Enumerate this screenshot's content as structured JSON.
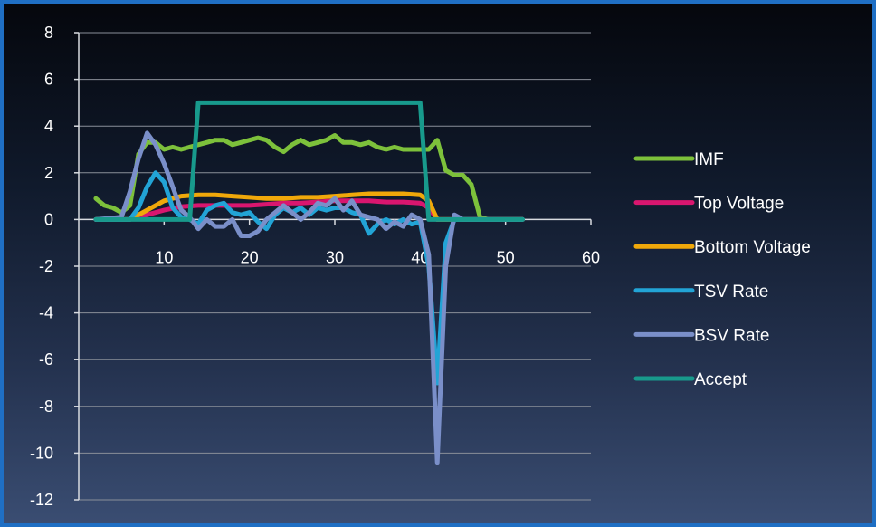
{
  "chart_data": {
    "type": "line",
    "title": "",
    "xlabel": "",
    "ylabel": "",
    "xlim": [
      0,
      60
    ],
    "ylim": [
      -12,
      8
    ],
    "x_ticks": [
      10,
      20,
      30,
      40,
      50,
      60
    ],
    "y_ticks": [
      8,
      6,
      4,
      2,
      0,
      -2,
      -4,
      -6,
      -8,
      -10,
      -12
    ],
    "grid": "horizontal",
    "legend_position": "right",
    "series": [
      {
        "name": "IMF",
        "color": "#7dc13b",
        "points": [
          [
            2,
            0.9
          ],
          [
            3,
            0.6
          ],
          [
            4,
            0.5
          ],
          [
            5,
            0.3
          ],
          [
            6,
            0.6
          ],
          [
            7,
            2.8
          ],
          [
            8,
            3.3
          ],
          [
            9,
            3.3
          ],
          [
            10,
            3.0
          ],
          [
            11,
            3.1
          ],
          [
            12,
            3.0
          ],
          [
            13,
            3.1
          ],
          [
            14,
            3.2
          ],
          [
            15,
            3.3
          ],
          [
            16,
            3.4
          ],
          [
            17,
            3.4
          ],
          [
            18,
            3.2
          ],
          [
            19,
            3.3
          ],
          [
            20,
            3.4
          ],
          [
            21,
            3.5
          ],
          [
            22,
            3.4
          ],
          [
            23,
            3.1
          ],
          [
            24,
            2.9
          ],
          [
            25,
            3.2
          ],
          [
            26,
            3.4
          ],
          [
            27,
            3.2
          ],
          [
            28,
            3.3
          ],
          [
            29,
            3.4
          ],
          [
            30,
            3.6
          ],
          [
            31,
            3.3
          ],
          [
            32,
            3.3
          ],
          [
            33,
            3.2
          ],
          [
            34,
            3.3
          ],
          [
            35,
            3.1
          ],
          [
            36,
            3.0
          ],
          [
            37,
            3.1
          ],
          [
            38,
            3.0
          ],
          [
            39,
            3.0
          ],
          [
            40,
            3.0
          ],
          [
            41,
            3.0
          ],
          [
            42,
            3.4
          ],
          [
            43,
            2.1
          ],
          [
            44,
            1.9
          ],
          [
            45,
            1.9
          ],
          [
            46,
            1.5
          ],
          [
            47,
            0.1
          ],
          [
            48,
            0.0
          ],
          [
            50,
            0.0
          ],
          [
            52,
            0.0
          ]
        ]
      },
      {
        "name": "Top Voltage",
        "color": "#d9166f",
        "points": [
          [
            2,
            0.0
          ],
          [
            6,
            0.0
          ],
          [
            8,
            0.2
          ],
          [
            10,
            0.4
          ],
          [
            12,
            0.55
          ],
          [
            14,
            0.6
          ],
          [
            16,
            0.6
          ],
          [
            18,
            0.6
          ],
          [
            20,
            0.6
          ],
          [
            22,
            0.65
          ],
          [
            24,
            0.7
          ],
          [
            26,
            0.7
          ],
          [
            28,
            0.75
          ],
          [
            30,
            0.8
          ],
          [
            32,
            0.8
          ],
          [
            34,
            0.8
          ],
          [
            36,
            0.75
          ],
          [
            38,
            0.75
          ],
          [
            40,
            0.7
          ],
          [
            41,
            0.5
          ],
          [
            42,
            0.0
          ],
          [
            52,
            0.0
          ]
        ]
      },
      {
        "name": "Bottom Voltage",
        "color": "#f0a80a",
        "points": [
          [
            2,
            0.0
          ],
          [
            6,
            0.0
          ],
          [
            8,
            0.4
          ],
          [
            10,
            0.8
          ],
          [
            12,
            1.0
          ],
          [
            14,
            1.05
          ],
          [
            16,
            1.05
          ],
          [
            18,
            1.0
          ],
          [
            20,
            0.95
          ],
          [
            22,
            0.9
          ],
          [
            24,
            0.9
          ],
          [
            26,
            0.95
          ],
          [
            28,
            0.95
          ],
          [
            30,
            1.0
          ],
          [
            32,
            1.05
          ],
          [
            34,
            1.1
          ],
          [
            36,
            1.1
          ],
          [
            38,
            1.1
          ],
          [
            40,
            1.05
          ],
          [
            41,
            0.8
          ],
          [
            42,
            0.0
          ],
          [
            52,
            0.0
          ]
        ]
      },
      {
        "name": "TSV Rate",
        "color": "#22a4d6",
        "points": [
          [
            2,
            0.0
          ],
          [
            6,
            0.0
          ],
          [
            7,
            0.5
          ],
          [
            8,
            1.4
          ],
          [
            9,
            2.0
          ],
          [
            10,
            1.6
          ],
          [
            11,
            0.5
          ],
          [
            12,
            0.1
          ],
          [
            13,
            0.0
          ],
          [
            14,
            -0.2
          ],
          [
            15,
            0.4
          ],
          [
            16,
            0.6
          ],
          [
            17,
            0.7
          ],
          [
            18,
            0.3
          ],
          [
            19,
            0.2
          ],
          [
            20,
            0.3
          ],
          [
            21,
            -0.1
          ],
          [
            22,
            -0.4
          ],
          [
            23,
            0.2
          ],
          [
            24,
            0.5
          ],
          [
            25,
            0.3
          ],
          [
            26,
            0.5
          ],
          [
            27,
            0.2
          ],
          [
            28,
            0.5
          ],
          [
            29,
            0.4
          ],
          [
            30,
            0.5
          ],
          [
            31,
            0.5
          ],
          [
            32,
            0.3
          ],
          [
            33,
            0.2
          ],
          [
            34,
            -0.6
          ],
          [
            35,
            -0.2
          ],
          [
            36,
            0.0
          ],
          [
            37,
            -0.2
          ],
          [
            38,
            0.0
          ],
          [
            39,
            -0.2
          ],
          [
            40,
            -0.1
          ],
          [
            41,
            -2.0
          ],
          [
            42,
            -7.0
          ],
          [
            43,
            -1.0
          ],
          [
            44,
            0.0
          ],
          [
            52,
            0.0
          ]
        ]
      },
      {
        "name": "BSV Rate",
        "color": "#7a8fc9",
        "points": [
          [
            2,
            0.0
          ],
          [
            5,
            0.1
          ],
          [
            6,
            1.2
          ],
          [
            7,
            2.6
          ],
          [
            8,
            3.7
          ],
          [
            9,
            3.2
          ],
          [
            10,
            2.4
          ],
          [
            11,
            1.4
          ],
          [
            12,
            0.4
          ],
          [
            13,
            0.1
          ],
          [
            14,
            -0.4
          ],
          [
            15,
            0.0
          ],
          [
            16,
            -0.3
          ],
          [
            17,
            -0.3
          ],
          [
            18,
            0.0
          ],
          [
            19,
            -0.7
          ],
          [
            20,
            -0.7
          ],
          [
            21,
            -0.5
          ],
          [
            22,
            0.0
          ],
          [
            23,
            0.3
          ],
          [
            24,
            0.6
          ],
          [
            25,
            0.3
          ],
          [
            26,
            0.0
          ],
          [
            27,
            0.3
          ],
          [
            28,
            0.7
          ],
          [
            29,
            0.6
          ],
          [
            30,
            0.9
          ],
          [
            31,
            0.4
          ],
          [
            32,
            0.8
          ],
          [
            33,
            0.2
          ],
          [
            34,
            0.1
          ],
          [
            35,
            0.0
          ],
          [
            36,
            -0.4
          ],
          [
            37,
            -0.1
          ],
          [
            38,
            -0.3
          ],
          [
            39,
            0.2
          ],
          [
            40,
            0.0
          ],
          [
            41,
            -1.5
          ],
          [
            42,
            -10.4
          ],
          [
            43,
            -2.0
          ],
          [
            44,
            0.2
          ],
          [
            45,
            0.0
          ],
          [
            52,
            0.0
          ]
        ]
      },
      {
        "name": "Accept",
        "color": "#189a8c",
        "points": [
          [
            2,
            0.0
          ],
          [
            13,
            0.0
          ],
          [
            14,
            5.0
          ],
          [
            40,
            5.0
          ],
          [
            41,
            0.0
          ],
          [
            52,
            0.0
          ]
        ]
      }
    ]
  }
}
